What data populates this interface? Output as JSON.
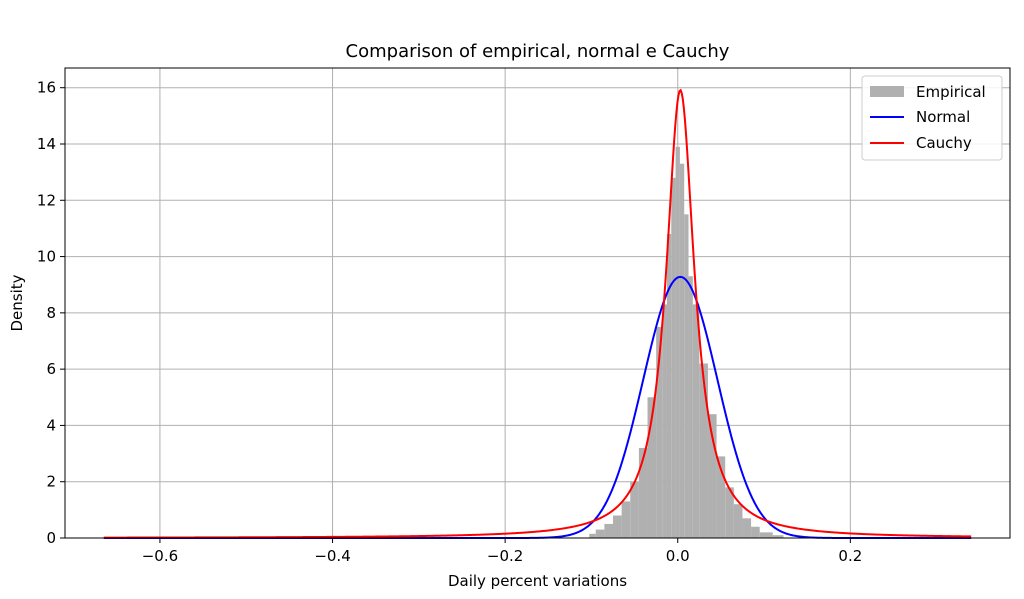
{
  "chart_data": {
    "type": "histogram+line",
    "title": "Comparison of empirical, normal e Cauchy",
    "xlabel": "Daily percent variations",
    "ylabel": "Density",
    "xlim": [
      -0.71,
      0.385
    ],
    "ylim": [
      0,
      16.7
    ],
    "xticks": [
      -0.6,
      -0.4,
      -0.2,
      0.0,
      0.2
    ],
    "xtick_labels": [
      "−0.6",
      "−0.4",
      "−0.2",
      "0.0",
      "0.2"
    ],
    "yticks": [
      0,
      2,
      4,
      6,
      8,
      10,
      12,
      14,
      16
    ],
    "ytick_labels": [
      "0",
      "2",
      "4",
      "6",
      "8",
      "10",
      "12",
      "14",
      "16"
    ],
    "grid": true,
    "legend_position": "top-right",
    "legend": [
      "Empirical",
      "Normal",
      "Cauchy"
    ],
    "colors": {
      "empirical": "#b0b0b0",
      "normal": "#0000ff",
      "cauchy": "#ff0000"
    },
    "series": [
      {
        "name": "Empirical",
        "kind": "histogram",
        "bins": [
          {
            "x": -0.1,
            "y": 0.15
          },
          {
            "x": -0.09,
            "y": 0.3
          },
          {
            "x": -0.08,
            "y": 0.5
          },
          {
            "x": -0.07,
            "y": 0.8
          },
          {
            "x": -0.06,
            "y": 1.3
          },
          {
            "x": -0.05,
            "y": 2.0
          },
          {
            "x": -0.04,
            "y": 3.2
          },
          {
            "x": -0.03,
            "y": 5.0
          },
          {
            "x": -0.02,
            "y": 7.5
          },
          {
            "x": -0.015,
            "y": 8.3
          },
          {
            "x": -0.01,
            "y": 10.8
          },
          {
            "x": -0.005,
            "y": 12.8
          },
          {
            "x": 0.0,
            "y": 13.9
          },
          {
            "x": 0.005,
            "y": 13.3
          },
          {
            "x": 0.01,
            "y": 11.5
          },
          {
            "x": 0.015,
            "y": 9.3
          },
          {
            "x": 0.02,
            "y": 8.3
          },
          {
            "x": 0.03,
            "y": 6.2
          },
          {
            "x": 0.04,
            "y": 4.4
          },
          {
            "x": 0.05,
            "y": 2.9
          },
          {
            "x": 0.06,
            "y": 1.8
          },
          {
            "x": 0.07,
            "y": 1.2
          },
          {
            "x": 0.08,
            "y": 0.7
          },
          {
            "x": 0.09,
            "y": 0.4
          },
          {
            "x": 0.1,
            "y": 0.2
          },
          {
            "x": 0.12,
            "y": 0.1
          }
        ]
      },
      {
        "name": "Normal",
        "kind": "pdf",
        "distribution": "normal",
        "mu": 0.003,
        "sigma": 0.043,
        "range": [
          -0.665,
          0.34
        ]
      },
      {
        "name": "Cauchy",
        "kind": "pdf",
        "distribution": "cauchy",
        "x0": 0.003,
        "gamma": 0.02,
        "range": [
          -0.665,
          0.34
        ]
      }
    ]
  }
}
